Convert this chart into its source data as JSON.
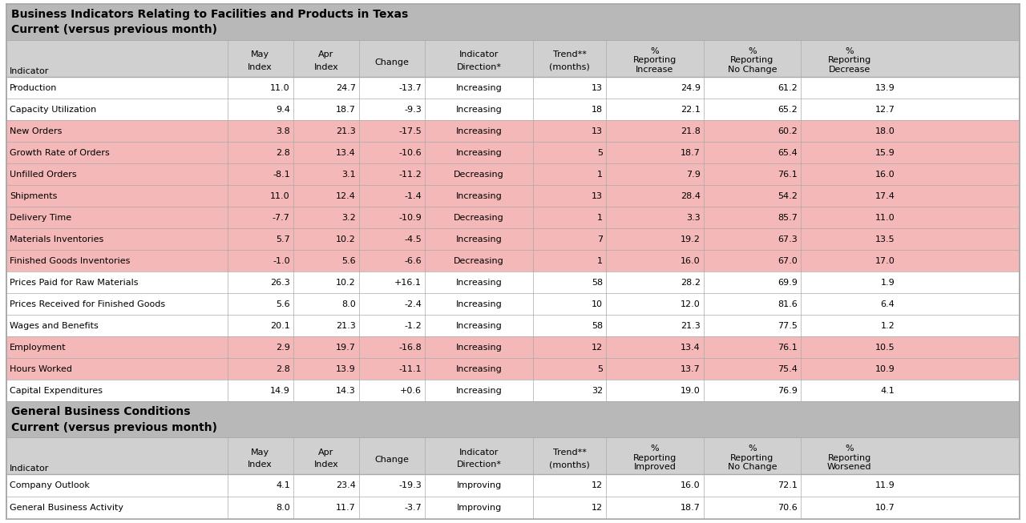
{
  "title1": "Business Indicators Relating to Facilities and Products in Texas",
  "title2": "Current (versus previous month)",
  "title3": "General Business Conditions",
  "title4": "Current (versus previous month)",
  "col_headers_top": [
    "Indicator",
    "May\nIndex",
    "Apr\nIndex",
    "Change",
    "Indicator\nDirection*",
    "Trend**\n(months)",
    "%\nReporting\nIncrease",
    "%\nReporting\nNo Change",
    "%\nReporting\nDecrease"
  ],
  "col_headers_top_extra": [
    "",
    "May",
    "Apr",
    "",
    "",
    "",
    "%",
    "%",
    "%"
  ],
  "col_headers_bottom": [
    "Indicator",
    "May\nIndex",
    "Apr\nIndex",
    "Change",
    "Indicator\nDirection*",
    "Trend**\n(months)",
    "%\nReporting\nImproved",
    "%\nReporting\nNo Change",
    "%\nReporting\nWorsened"
  ],
  "rows_top": [
    [
      "Production",
      "11.0",
      "24.7",
      "-13.7",
      "Increasing",
      "13",
      "24.9",
      "61.2",
      "13.9",
      "white"
    ],
    [
      "Capacity Utilization",
      "9.4",
      "18.7",
      "-9.3",
      "Increasing",
      "18",
      "22.1",
      "65.2",
      "12.7",
      "white"
    ],
    [
      "New Orders",
      "3.8",
      "21.3",
      "-17.5",
      "Increasing",
      "13",
      "21.8",
      "60.2",
      "18.0",
      "pink"
    ],
    [
      "Growth Rate of Orders",
      "2.8",
      "13.4",
      "-10.6",
      "Increasing",
      "5",
      "18.7",
      "65.4",
      "15.9",
      "pink"
    ],
    [
      "Unfilled Orders",
      "-8.1",
      "3.1",
      "-11.2",
      "Decreasing",
      "1",
      "7.9",
      "76.1",
      "16.0",
      "pink"
    ],
    [
      "Shipments",
      "11.0",
      "12.4",
      "-1.4",
      "Increasing",
      "13",
      "28.4",
      "54.2",
      "17.4",
      "pink"
    ],
    [
      "Delivery Time",
      "-7.7",
      "3.2",
      "-10.9",
      "Decreasing",
      "1",
      "3.3",
      "85.7",
      "11.0",
      "pink"
    ],
    [
      "Materials Inventories",
      "5.7",
      "10.2",
      "-4.5",
      "Increasing",
      "7",
      "19.2",
      "67.3",
      "13.5",
      "pink"
    ],
    [
      "Finished Goods Inventories",
      "-1.0",
      "5.6",
      "-6.6",
      "Decreasing",
      "1",
      "16.0",
      "67.0",
      "17.0",
      "pink"
    ],
    [
      "Prices Paid for Raw Materials",
      "26.3",
      "10.2",
      "+16.1",
      "Increasing",
      "58",
      "28.2",
      "69.9",
      "1.9",
      "white"
    ],
    [
      "Prices Received for Finished Goods",
      "5.6",
      "8.0",
      "-2.4",
      "Increasing",
      "10",
      "12.0",
      "81.6",
      "6.4",
      "white"
    ],
    [
      "Wages and Benefits",
      "20.1",
      "21.3",
      "-1.2",
      "Increasing",
      "58",
      "21.3",
      "77.5",
      "1.2",
      "white"
    ],
    [
      "Employment",
      "2.9",
      "19.7",
      "-16.8",
      "Increasing",
      "12",
      "13.4",
      "76.1",
      "10.5",
      "pink"
    ],
    [
      "Hours Worked",
      "2.8",
      "13.9",
      "-11.1",
      "Increasing",
      "5",
      "13.7",
      "75.4",
      "10.9",
      "pink"
    ],
    [
      "Capital Expenditures",
      "14.9",
      "14.3",
      "+0.6",
      "Increasing",
      "32",
      "19.0",
      "76.9",
      "4.1",
      "white"
    ]
  ],
  "rows_bottom": [
    [
      "Company Outlook",
      "4.1",
      "23.4",
      "-19.3",
      "Improving",
      "12",
      "16.0",
      "72.1",
      "11.9",
      "white"
    ],
    [
      "General Business Activity",
      "8.0",
      "11.7",
      "-3.7",
      "Improving",
      "12",
      "18.7",
      "70.6",
      "10.7",
      "white"
    ]
  ],
  "header_bg": "#b8b8b8",
  "col_header_bg": "#d0d0d0",
  "pink_bg": "#f4b8b8",
  "white_bg": "#ffffff",
  "grid_color": "#aaaaaa",
  "font_size": 8.0,
  "header_font_size": 10.0,
  "col_header_font_size": 8.0
}
